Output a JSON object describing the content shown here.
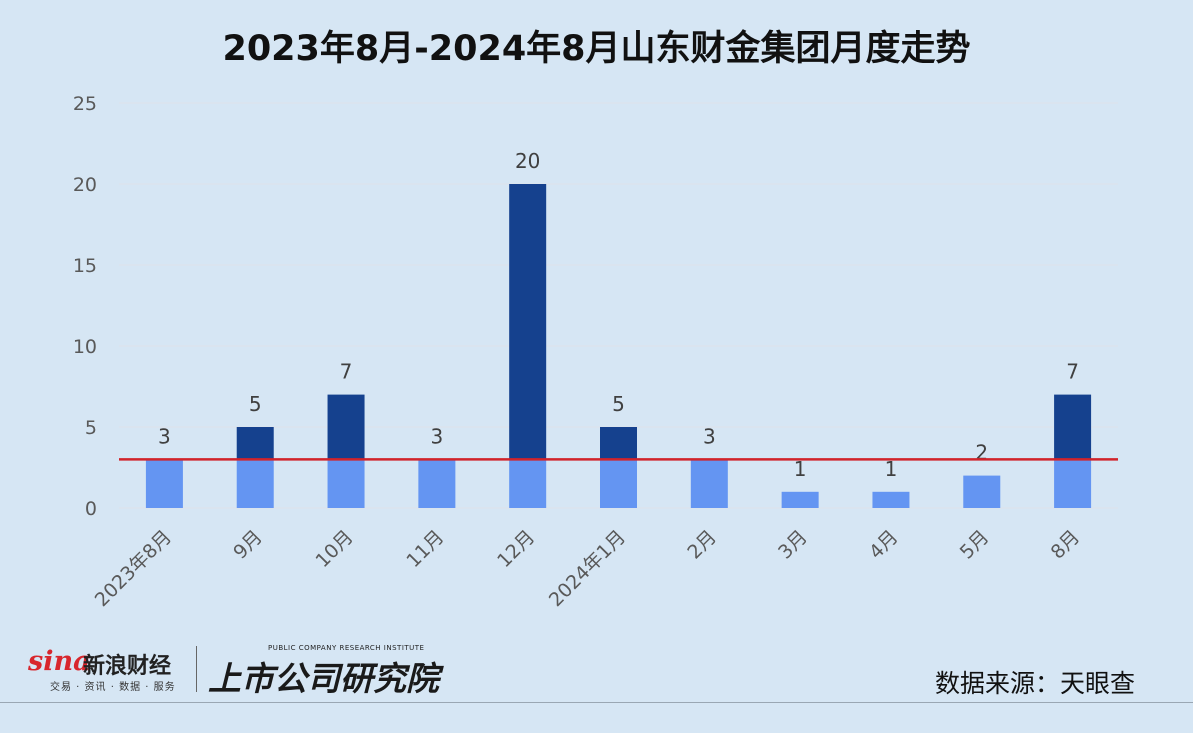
{
  "header": {
    "title": "2023年8月-2024年8月山东财金集团月度走势"
  },
  "chart_data": {
    "type": "bar",
    "title": "2023年8月-2024年8月山东财金集团月度走势",
    "categories": [
      "2023年8月",
      "9月",
      "10月",
      "11月",
      "12月",
      "2024年1月",
      "2月",
      "3月",
      "4月",
      "5月",
      "8月"
    ],
    "values": [
      3,
      5,
      7,
      3,
      20,
      5,
      3,
      1,
      1,
      2,
      7
    ],
    "ylim": [
      0,
      25
    ],
    "yticks": [
      0,
      5,
      10,
      15,
      20,
      25
    ],
    "reference_line": 3,
    "grid": true,
    "colors": {
      "base": "#6495f2",
      "above": "#15418e",
      "reference_line": "#d1232a",
      "gridline": "#dde3ea"
    }
  },
  "footer": {
    "sina_brand": "sina",
    "sina_name": "新浪财经",
    "sina_sub": "交易 · 资讯 · 数据 · 服务",
    "ssgs_en": "PUBLIC COMPANY RESEARCH INSTITUTE",
    "ssgs_cn": "上市公司研究院",
    "source": "数据来源：天眼查"
  }
}
